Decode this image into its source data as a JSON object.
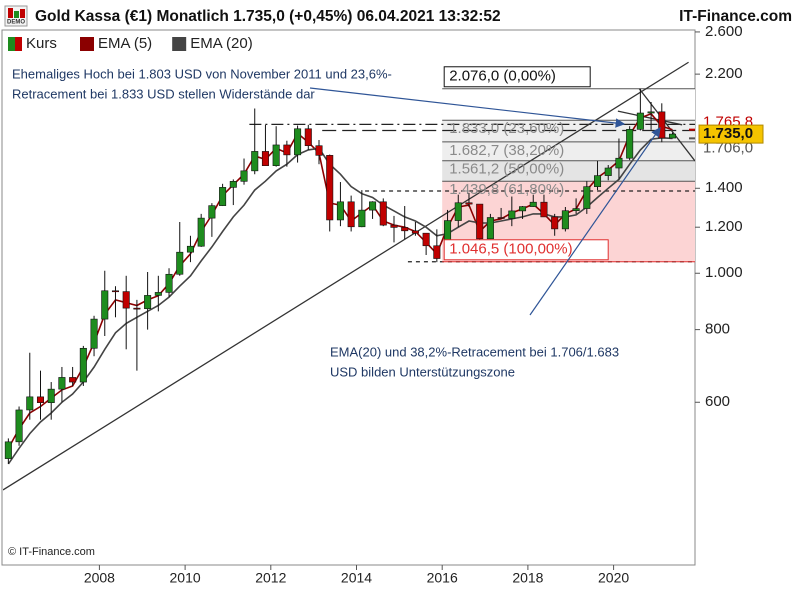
{
  "chart_data": {
    "type": "candlestick",
    "badge": "DEMO",
    "title": "Gold Kassa (€1) Monatlich 1.735,0 (+0,45%) 06.04.2021 13:32:52",
    "source": "IT-Finance.com",
    "copyright": "© IT-Finance.com",
    "log_scale": true,
    "xlim": [
      2005.75,
      2021.9
    ],
    "xticks": [
      2008,
      2010,
      2012,
      2014,
      2016,
      2018,
      2020
    ],
    "ylim": [
      315,
      2620
    ],
    "yticks": [
      {
        "value": 2600,
        "label": "2.600"
      },
      {
        "value": 2200,
        "label": "2.200"
      },
      {
        "value": 1400,
        "label": "1.400"
      },
      {
        "value": 1200,
        "label": "1.200"
      },
      {
        "value": 1000,
        "label": "1.000"
      },
      800,
      600
    ],
    "x": [
      2005.75,
      2006,
      2006.25,
      2006.5,
      2006.75,
      2007,
      2007.25,
      2007.5,
      2007.75,
      2008,
      2008.25,
      2008.5,
      2008.75,
      2009,
      2009.25,
      2009.5,
      2009.75,
      2010,
      2010.25,
      2010.5,
      2010.75,
      2011,
      2011.25,
      2011.5,
      2011.75,
      2012,
      2012.25,
      2012.5,
      2012.75,
      2013,
      2013.25,
      2013.5,
      2013.75,
      2014,
      2014.25,
      2014.5,
      2014.75,
      2015,
      2015.25,
      2015.5,
      2015.75,
      2016,
      2016.25,
      2016.5,
      2016.75,
      2017,
      2017.25,
      2017.5,
      2017.75,
      2018,
      2018.25,
      2018.5,
      2018.75,
      2019,
      2019.25,
      2019.5,
      2019.75,
      2020,
      2020.25,
      2020.5,
      2020.75,
      2021,
      2021.25
    ],
    "candles": {
      "name": "Kurs",
      "up_color": "#1e8c1e",
      "down_color": "#c00000",
      "open": [
        480,
        513,
        582,
        613,
        599,
        632,
        662,
        650,
        743,
        834,
        933,
        930,
        871,
        869,
        916,
        927,
        996,
        1087,
        1113,
        1244,
        1307,
        1405,
        1439,
        1500,
        1620,
        1531,
        1662,
        1598,
        1772,
        1657,
        1595,
        1235,
        1327,
        1202,
        1284,
        1327,
        1210,
        1199,
        1183,
        1172,
        1115,
        1060,
        1232,
        1322,
        1315,
        1146,
        1247,
        1242,
        1280,
        1302,
        1325,
        1250,
        1192,
        1281,
        1292,
        1409,
        1472,
        1517,
        1577,
        1768,
        1886,
        1895,
        1708
      ],
      "high": [
        520,
        590,
        730,
        680,
        650,
        690,
        690,
        750,
        845,
        1010,
        950,
        990,
        900,
        1005,
        990,
        1020,
        1225,
        1160,
        1265,
        1320,
        1425,
        1450,
        1575,
        1920,
        1800,
        1790,
        1690,
        1795,
        1800,
        1695,
        1600,
        1435,
        1360,
        1390,
        1330,
        1345,
        1255,
        1305,
        1225,
        1170,
        1190,
        1285,
        1365,
        1375,
        1310,
        1265,
        1295,
        1355,
        1305,
        1365,
        1365,
        1265,
        1300,
        1345,
        1440,
        1560,
        1535,
        1705,
        1790,
        2076,
        1970,
        1960,
        1745
      ],
      "low": [
        470,
        505,
        560,
        560,
        560,
        600,
        640,
        640,
        720,
        780,
        840,
        740,
        680,
        800,
        860,
        910,
        990,
        1045,
        1110,
        1155,
        1305,
        1310,
        1420,
        1480,
        1530,
        1525,
        1525,
        1550,
        1630,
        1540,
        1180,
        1205,
        1180,
        1200,
        1240,
        1205,
        1130,
        1145,
        1160,
        1075,
        1045,
        1060,
        1200,
        1300,
        1125,
        1145,
        1240,
        1205,
        1240,
        1300,
        1250,
        1160,
        1180,
        1265,
        1265,
        1390,
        1445,
        1450,
        1565,
        1760,
        1765,
        1680,
        1705
      ],
      "close": [
        513,
        582,
        613,
        599,
        632,
        662,
        650,
        743,
        834,
        933,
        930,
        871,
        869,
        916,
        927,
        996,
        1087,
        1113,
        1244,
        1307,
        1405,
        1439,
        1500,
        1620,
        1531,
        1662,
        1598,
        1772,
        1657,
        1595,
        1235,
        1327,
        1202,
        1284,
        1327,
        1210,
        1199,
        1183,
        1172,
        1115,
        1060,
        1232,
        1322,
        1315,
        1146,
        1247,
        1242,
        1280,
        1302,
        1325,
        1250,
        1192,
        1281,
        1292,
        1409,
        1472,
        1517,
        1577,
        1768,
        1886,
        1895,
        1708,
        1735
      ]
    },
    "series": [
      {
        "name": "EMA (5)",
        "color": "#8b0000",
        "values": [
          500,
          540,
          575,
          590,
          610,
          630,
          640,
          690,
          760,
          850,
          900,
          890,
          880,
          900,
          915,
          960,
          1030,
          1080,
          1180,
          1260,
          1360,
          1420,
          1480,
          1590,
          1570,
          1640,
          1610,
          1740,
          1680,
          1610,
          1320,
          1310,
          1230,
          1270,
          1310,
          1230,
          1210,
          1200,
          1180,
          1130,
          1080,
          1200,
          1300,
          1310,
          1180,
          1230,
          1240,
          1270,
          1290,
          1315,
          1265,
          1210,
          1265,
          1290,
          1390,
          1460,
          1505,
          1560,
          1730,
          1850,
          1880,
          1790,
          1765.8
        ]
      },
      {
        "name": "EMA (20)",
        "color": "#444444",
        "values": [
          470,
          500,
          530,
          555,
          575,
          600,
          620,
          650,
          690,
          740,
          790,
          820,
          840,
          860,
          880,
          910,
          950,
          990,
          1050,
          1110,
          1180,
          1250,
          1310,
          1390,
          1440,
          1500,
          1540,
          1600,
          1630,
          1640,
          1540,
          1480,
          1410,
          1370,
          1350,
          1310,
          1280,
          1250,
          1230,
          1200,
          1160,
          1170,
          1200,
          1230,
          1220,
          1220,
          1230,
          1240,
          1250,
          1265,
          1265,
          1250,
          1250,
          1260,
          1300,
          1350,
          1400,
          1450,
          1540,
          1630,
          1700,
          1710,
          1706.0
        ]
      }
    ],
    "price_tags": [
      {
        "value": 1765.8,
        "label": "1.765,8",
        "color": "#c00000"
      },
      {
        "value": 1706.0,
        "label": "1.706,0",
        "color": "#555555"
      },
      {
        "value": 1735.0,
        "label": "1.735,0",
        "color": "#f5c400"
      }
    ],
    "fibonacci": {
      "x_start": 2016,
      "levels": [
        {
          "value": 2076.0,
          "label": "2.076,0 (0,00%)",
          "fill": "#ffffff"
        },
        {
          "value": 1833.0,
          "label": "1.833,0 (23,60%)",
          "fill": "#eeeeee"
        },
        {
          "value": 1682.7,
          "label": "1.682,7 (38,20%)",
          "fill": "#eeeeee"
        },
        {
          "value": 1561.2,
          "label": "1.561,2 (50,00%)",
          "fill": "#e4e4e4"
        },
        {
          "value": 1439.8,
          "label": "1.439,8 (61,80%)",
          "fill": "#fcd4d4"
        },
        {
          "value": 1046.5,
          "label": "1.046,5 (100,00%)"
        }
      ]
    },
    "horizontal_lines": [
      {
        "value": 1803,
        "x_start": 2011.5,
        "style": "dashdot"
      },
      {
        "value": 1760,
        "x_start": 2013.2,
        "style": "longdash"
      },
      {
        "value": 1385,
        "x_start": 2014.2,
        "style": "dash"
      },
      {
        "value": 1046.5,
        "x_start": 2015.2,
        "style": "dash"
      }
    ],
    "trendlines": [
      {
        "x": [
          2005.75,
          2021.75
        ],
        "y": [
          424,
          2306
        ]
      },
      {
        "x": [
          2020.6,
          2021.9
        ],
        "y": [
          2076,
          1560
        ]
      },
      {
        "x": [
          2020.1,
          2021.6
        ],
        "y": [
          1900,
          1800
        ]
      }
    ],
    "annotations": [
      {
        "lines": [
          "Ehemaliges Hoch bei 1.803 USD von November 2011 und 23,6%-",
          "Retracement bei 1.833 USD stellen Widerstände dar"
        ]
      },
      {
        "lines": [
          "EMA(20) und 38,2%-Retracement bei 1.706/1.683",
          "USD bilden Unterstützungszone"
        ]
      }
    ]
  }
}
